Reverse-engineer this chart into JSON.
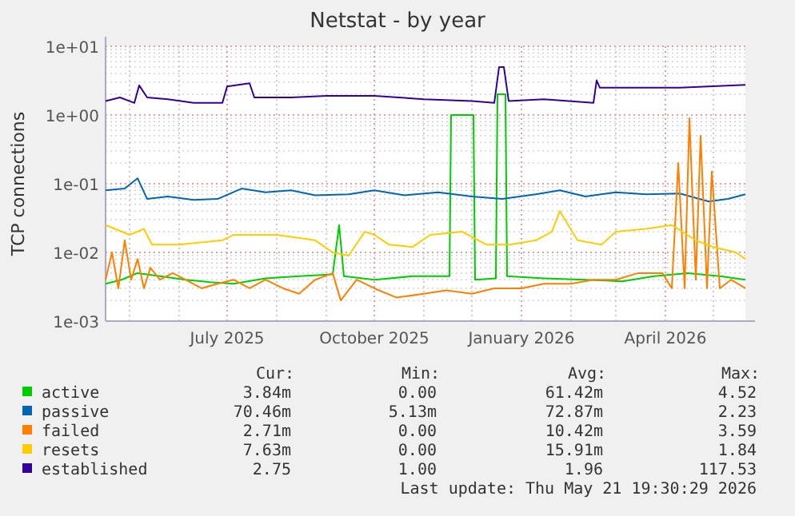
{
  "chart_data": {
    "type": "line",
    "title": "Netstat - by year",
    "ylabel": "TCP connections",
    "log": "y",
    "grid": true,
    "legend": "bottom",
    "xlim": [
      "2025-04-16",
      "2026-05-21"
    ],
    "xticks": [
      {
        "value": "2025-05-01",
        "label": null
      },
      {
        "value": "2025-06-01",
        "label": null
      },
      {
        "value": "2025-07-01",
        "label": "July 2025"
      },
      {
        "value": "2025-08-01",
        "label": null
      },
      {
        "value": "2025-09-01",
        "label": null
      },
      {
        "value": "2025-10-01",
        "label": "October 2025"
      },
      {
        "value": "2025-11-01",
        "label": null
      },
      {
        "value": "2025-12-01",
        "label": null
      },
      {
        "value": "2026-01-01",
        "label": "January 2026"
      },
      {
        "value": "2026-02-01",
        "label": null
      },
      {
        "value": "2026-03-01",
        "label": null
      },
      {
        "value": "2026-04-01",
        "label": "April 2026"
      },
      {
        "value": "2026-05-01",
        "label": null
      }
    ],
    "ylim": [
      0.001,
      10
    ],
    "yticks": [
      {
        "value": 0.001,
        "label": "1e-03"
      },
      {
        "value": 0.01,
        "label": "1e-02"
      },
      {
        "value": 0.1,
        "label": "1e-01"
      },
      {
        "value": 1,
        "label": "1e+00"
      },
      {
        "value": 10,
        "label": "1e+01"
      }
    ],
    "series": [
      {
        "name": "active",
        "color": "#00cc00",
        "x": [
          "2025-04-16",
          "2025-04-26",
          "2025-05-06",
          "2025-05-20",
          "2025-06-05",
          "2025-06-20",
          "2025-07-05",
          "2025-07-25",
          "2025-08-15",
          "2025-09-05",
          "2025-09-09",
          "2025-09-12",
          "2025-10-01",
          "2025-10-25",
          "2025-11-17",
          "2025-11-18",
          "2025-12-02",
          "2025-12-03",
          "2025-12-16",
          "2025-12-17",
          "2025-12-22",
          "2025-12-23",
          "2026-01-15",
          "2026-02-10",
          "2026-03-05",
          "2026-03-25",
          "2026-04-15",
          "2026-05-05",
          "2026-05-21"
        ],
        "values": [
          0.0035,
          0.004,
          0.005,
          0.0045,
          0.004,
          0.0037,
          0.0035,
          0.0042,
          0.0045,
          0.0048,
          0.025,
          0.0045,
          0.004,
          0.0045,
          0.0045,
          1.0,
          1.0,
          0.004,
          0.0042,
          2.0,
          2.0,
          0.0045,
          0.0042,
          0.004,
          0.0038,
          0.0045,
          0.005,
          0.0045,
          0.004
        ]
      },
      {
        "name": "passive",
        "color": "#0066b3",
        "x": [
          "2025-04-16",
          "2025-04-28",
          "2025-05-06",
          "2025-05-12",
          "2025-05-25",
          "2025-06-10",
          "2025-06-25",
          "2025-07-10",
          "2025-07-25",
          "2025-08-10",
          "2025-08-25",
          "2025-09-15",
          "2025-10-01",
          "2025-10-20",
          "2025-11-10",
          "2025-12-01",
          "2025-12-20",
          "2026-01-10",
          "2026-01-25",
          "2026-02-10",
          "2026-03-01",
          "2026-03-20",
          "2026-04-10",
          "2026-04-28",
          "2026-05-10",
          "2026-05-21"
        ],
        "values": [
          0.08,
          0.085,
          0.12,
          0.06,
          0.065,
          0.058,
          0.06,
          0.085,
          0.075,
          0.08,
          0.068,
          0.07,
          0.08,
          0.068,
          0.075,
          0.065,
          0.06,
          0.07,
          0.08,
          0.065,
          0.075,
          0.07,
          0.072,
          0.055,
          0.06,
          0.07
        ]
      },
      {
        "name": "failed",
        "color": "#ff8000",
        "x": [
          "2025-04-16",
          "2025-04-20",
          "2025-04-24",
          "2025-04-28",
          "2025-05-02",
          "2025-05-06",
          "2025-05-10",
          "2025-05-14",
          "2025-05-20",
          "2025-05-28",
          "2025-06-05",
          "2025-06-15",
          "2025-06-25",
          "2025-07-05",
          "2025-07-15",
          "2025-07-25",
          "2025-08-05",
          "2025-08-15",
          "2025-08-25",
          "2025-09-05",
          "2025-09-10",
          "2025-09-20",
          "2025-10-01",
          "2025-10-15",
          "2025-11-01",
          "2025-11-15",
          "2025-12-01",
          "2025-12-15",
          "2026-01-01",
          "2026-01-15",
          "2026-02-01",
          "2026-02-15",
          "2026-03-01",
          "2026-03-15",
          "2026-03-30",
          "2026-04-05",
          "2026-04-09",
          "2026-04-13",
          "2026-04-16",
          "2026-04-20",
          "2026-04-23",
          "2026-04-27",
          "2026-04-30",
          "2026-05-05",
          "2026-05-12",
          "2026-05-21"
        ],
        "values": [
          0.004,
          0.01,
          0.003,
          0.015,
          0.004,
          0.008,
          0.003,
          0.006,
          0.004,
          0.005,
          0.004,
          0.003,
          0.0035,
          0.004,
          0.003,
          0.004,
          0.003,
          0.0025,
          0.004,
          0.005,
          0.002,
          0.004,
          0.003,
          0.0022,
          0.0025,
          0.0028,
          0.0025,
          0.003,
          0.003,
          0.0035,
          0.0035,
          0.004,
          0.004,
          0.005,
          0.005,
          0.003,
          0.2,
          0.003,
          0.9,
          0.004,
          0.5,
          0.003,
          0.15,
          0.003,
          0.004,
          0.003
        ]
      },
      {
        "name": "resets",
        "color": "#ffcc00",
        "x": [
          "2025-04-16",
          "2025-05-01",
          "2025-05-10",
          "2025-05-15",
          "2025-06-01",
          "2025-06-28",
          "2025-07-05",
          "2025-08-01",
          "2025-08-25",
          "2025-09-05",
          "2025-09-15",
          "2025-09-25",
          "2025-10-01",
          "2025-10-10",
          "2025-10-25",
          "2025-11-05",
          "2025-11-25",
          "2025-12-10",
          "2025-12-25",
          "2026-01-10",
          "2026-01-20",
          "2026-01-25",
          "2026-02-05",
          "2026-02-20",
          "2026-03-01",
          "2026-03-20",
          "2026-04-05",
          "2026-04-20",
          "2026-05-01",
          "2026-05-15",
          "2026-05-21"
        ],
        "values": [
          0.025,
          0.018,
          0.022,
          0.013,
          0.013,
          0.015,
          0.018,
          0.018,
          0.015,
          0.01,
          0.009,
          0.02,
          0.018,
          0.013,
          0.012,
          0.018,
          0.02,
          0.013,
          0.013,
          0.015,
          0.02,
          0.04,
          0.015,
          0.013,
          0.02,
          0.022,
          0.025,
          0.015,
          0.012,
          0.01,
          0.008
        ]
      },
      {
        "name": "established",
        "color": "#330099",
        "x": [
          "2025-04-16",
          "2025-04-25",
          "2025-05-04",
          "2025-05-07",
          "2025-05-12",
          "2025-05-25",
          "2025-06-10",
          "2025-06-28",
          "2025-07-01",
          "2025-07-15",
          "2025-07-18",
          "2025-08-10",
          "2025-09-01",
          "2025-10-01",
          "2025-11-01",
          "2025-12-01",
          "2025-12-15",
          "2025-12-18",
          "2025-12-21",
          "2025-12-24",
          "2026-01-15",
          "2026-02-15",
          "2026-02-17",
          "2026-02-19",
          "2026-03-10",
          "2026-04-10",
          "2026-05-21"
        ],
        "values": [
          1.6,
          1.8,
          1.5,
          2.7,
          1.8,
          1.7,
          1.5,
          1.5,
          2.6,
          2.9,
          1.8,
          1.8,
          1.9,
          1.9,
          1.7,
          1.6,
          1.5,
          5.0,
          5.0,
          1.6,
          1.7,
          1.5,
          3.2,
          2.5,
          2.5,
          2.5,
          2.75
        ]
      }
    ],
    "annotations": [
      "Cur:",
      "Min:",
      "Avg:",
      "Max:",
      "3.84m",
      "0.00",
      "61.42m",
      "4.52",
      "70.46m",
      "5.13m",
      "72.87m",
      "2.23",
      "2.71m",
      "0.00",
      "10.42m",
      "3.59",
      "7.63m",
      "0.00",
      "15.91m",
      "1.84",
      "2.75",
      "1.00",
      "1.96",
      "117.53",
      "Last update: Thu May 21 19:30:29 2026"
    ]
  }
}
